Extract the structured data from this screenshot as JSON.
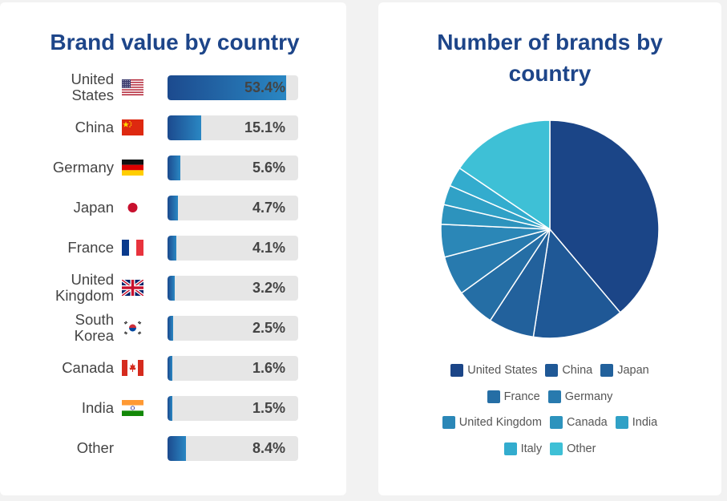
{
  "chart_data": [
    {
      "type": "bar",
      "title": "Brand value by country",
      "unit": "%",
      "xlim": [
        0,
        100
      ],
      "categories": [
        {
          "label_lines": [
            "United",
            "States"
          ],
          "flag": "us-flag-icon",
          "value": 53.4,
          "label": "53.4%"
        },
        {
          "label_lines": [
            "China"
          ],
          "flag": "china-flag-icon",
          "value": 15.1,
          "label": "15.1%"
        },
        {
          "label_lines": [
            "Germany"
          ],
          "flag": "germany-flag-icon",
          "value": 5.6,
          "label": "5.6%"
        },
        {
          "label_lines": [
            "Japan"
          ],
          "flag": "japan-flag-icon",
          "value": 4.7,
          "label": "4.7%"
        },
        {
          "label_lines": [
            "France"
          ],
          "flag": "france-flag-icon",
          "value": 4.1,
          "label": "4.1%"
        },
        {
          "label_lines": [
            "United",
            "Kingdom"
          ],
          "flag": "uk-flag-icon",
          "value": 3.2,
          "label": "3.2%"
        },
        {
          "label_lines": [
            "South",
            "Korea"
          ],
          "flag": "south-korea-flag-icon",
          "value": 2.5,
          "label": "2.5%"
        },
        {
          "label_lines": [
            "Canada"
          ],
          "flag": "canada-flag-icon",
          "value": 1.6,
          "label": "1.6%"
        },
        {
          "label_lines": [
            "India"
          ],
          "flag": "india-flag-icon",
          "value": 1.5,
          "label": "1.5%"
        },
        {
          "label_lines": [
            "Other"
          ],
          "flag": "",
          "value": 8.4,
          "label": "8.4%"
        }
      ],
      "bar_gradient": [
        "#1c4a8e",
        "#2a87c3"
      ],
      "track_color": "#e6e6e6"
    },
    {
      "type": "pie",
      "title": "Number of brands by country",
      "slices": [
        {
          "name": "United States",
          "value": 40.0,
          "color": "#1b4587"
        },
        {
          "name": "China",
          "value": 14.0,
          "color": "#1f5896"
        },
        {
          "name": "Japan",
          "value": 7.0,
          "color": "#22619c"
        },
        {
          "name": "France",
          "value": 6.0,
          "color": "#256ea5"
        },
        {
          "name": "Germany",
          "value": 6.0,
          "color": "#287aae"
        },
        {
          "name": "United Kingdom",
          "value": 5.0,
          "color": "#2b87b7"
        },
        {
          "name": "Canada",
          "value": 3.0,
          "color": "#2d93bd"
        },
        {
          "name": "India",
          "value": 3.0,
          "color": "#30a1c6"
        },
        {
          "name": "Italy",
          "value": 3.0,
          "color": "#33acce"
        },
        {
          "name": "Other",
          "value": 16.0,
          "color": "#3ec0d6"
        }
      ],
      "legend_rows": [
        [
          0,
          1,
          2
        ],
        [
          3,
          4
        ],
        [
          5,
          6,
          7
        ],
        [
          8,
          9
        ]
      ]
    }
  ]
}
